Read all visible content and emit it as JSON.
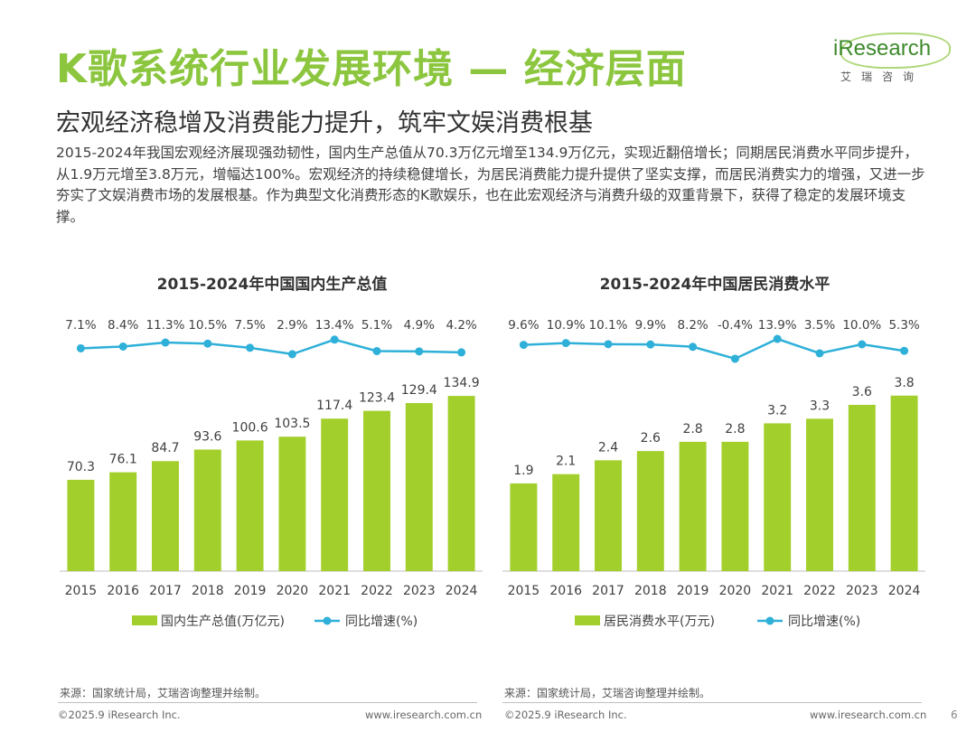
{
  "title": "K歌系统行业发展环境 — 经济层面",
  "subtitle": "宏观经济稳增及消费能力提升，筑牢文娱消费根基",
  "intro": "2015-2024年我国宏观经济展现强劲韧性，国内生产总值从70.3万亿元增至134.9万亿元，实现近翻倍增长；同期居民消费水平同步提升，从1.9万元增至3.8万元，增幅达100%。宏观经济的持续稳健增长，为居民消费能力提升提供了坚实支撑，而居民消费实力的增强，又进一步夯实了文娱消费市场的发展根基。作为典型文化消费形态的K歌娱乐，也在此宏观经济与消费升级的双重背景下，获得了稳定的发展环境支撑。",
  "logo": {
    "brand": "iResearch",
    "sub": "艾瑞咨询"
  },
  "colors": {
    "bar": "#a3cf2c",
    "line": "#2eb0d8",
    "title": "#8cc63f"
  },
  "chart_data": [
    {
      "type": "bar",
      "title": "2015-2024年中国国内生产总值",
      "categories": [
        "2015",
        "2016",
        "2017",
        "2018",
        "2019",
        "2020",
        "2021",
        "2022",
        "2023",
        "2024"
      ],
      "values": [
        70.3,
        76.1,
        84.7,
        93.6,
        100.6,
        103.5,
        117.4,
        123.4,
        129.4,
        134.9
      ],
      "value_labels": [
        "70.3",
        "76.1",
        "84.7",
        "93.6",
        "100.6",
        "103.5",
        "117.4",
        "123.4",
        "129.4",
        "134.9"
      ],
      "growth": [
        7.1,
        8.4,
        11.3,
        10.5,
        7.5,
        2.9,
        13.4,
        5.1,
        4.9,
        4.2
      ],
      "growth_labels": [
        "7.1%",
        "8.4%",
        "11.3%",
        "10.5%",
        "7.5%",
        "2.9%",
        "13.4%",
        "5.1%",
        "4.9%",
        "4.2%"
      ],
      "legend": [
        "国内生产总值(万亿元)",
        "同比增速(%)"
      ],
      "ylim": [
        0,
        160
      ],
      "source": "来源：国家统计局，艾瑞咨询整理并绘制。"
    },
    {
      "type": "bar",
      "title": "2015-2024年中国居民消费水平",
      "categories": [
        "2015",
        "2016",
        "2017",
        "2018",
        "2019",
        "2020",
        "2021",
        "2022",
        "2023",
        "2024"
      ],
      "values": [
        1.9,
        2.1,
        2.4,
        2.6,
        2.8,
        2.8,
        3.2,
        3.3,
        3.6,
        3.8
      ],
      "value_labels": [
        "1.9",
        "2.1",
        "2.4",
        "2.6",
        "2.8",
        "2.8",
        "3.2",
        "3.3",
        "3.6",
        "3.8"
      ],
      "growth": [
        9.6,
        10.9,
        10.1,
        9.9,
        8.2,
        -0.4,
        13.9,
        3.5,
        10.0,
        5.3
      ],
      "growth_labels": [
        "9.6%",
        "10.9%",
        "10.1%",
        "9.9%",
        "8.2%",
        "-0.4%",
        "13.9%",
        "3.5%",
        "10.0%",
        "5.3%"
      ],
      "legend": [
        "居民消费水平(万元)",
        "同比增速(%)"
      ],
      "ylim": [
        0,
        4.5
      ],
      "source": "来源：国家统计局，艾瑞咨询整理并绘制。"
    }
  ],
  "footer": {
    "copyright": "©2025.9 iResearch Inc.",
    "url": "www.iresearch.com.cn",
    "page": "6"
  }
}
